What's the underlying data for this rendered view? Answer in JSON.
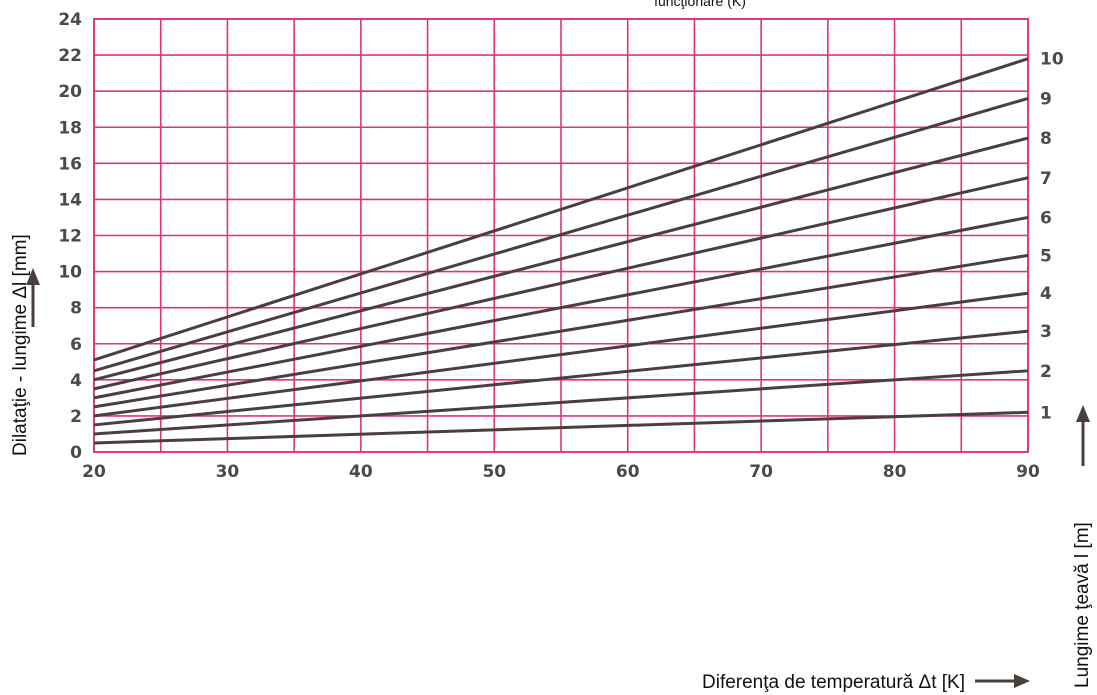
{
  "chart_data": {
    "type": "line",
    "title": "",
    "top_label_fragment": "funcţionare  (K)",
    "xlabel": "Diferenţa de temperatură Δt [K]",
    "ylabel": "Dilataţie - lungime Δl [mm]",
    "y2label": "Lungime ţeavă l [m]",
    "xlim": [
      20,
      90
    ],
    "ylim": [
      0,
      24
    ],
    "x_ticks": [
      "20",
      "30",
      "40",
      "50",
      "60",
      "70",
      "80",
      "90"
    ],
    "y_ticks": [
      "0",
      "2",
      "4",
      "6",
      "8",
      "10",
      "12",
      "14",
      "16",
      "18",
      "20",
      "22",
      "24"
    ],
    "grid": true,
    "x_grid_step": 5,
    "y_grid_step": 2,
    "colors": {
      "grid": "#e0327a",
      "line": "#4a3f3c",
      "tick": "#4a4a4a"
    },
    "x": [
      20,
      90
    ],
    "series": [
      {
        "name": "1",
        "values": [
          0.5,
          2.2
        ]
      },
      {
        "name": "2",
        "values": [
          1.0,
          4.5
        ]
      },
      {
        "name": "3",
        "values": [
          1.5,
          6.7
        ]
      },
      {
        "name": "4",
        "values": [
          2.0,
          8.8
        ]
      },
      {
        "name": "5",
        "values": [
          2.5,
          10.9
        ]
      },
      {
        "name": "6",
        "values": [
          3.0,
          13.0
        ]
      },
      {
        "name": "7",
        "values": [
          3.5,
          15.2
        ]
      },
      {
        "name": "8",
        "values": [
          4.0,
          17.4
        ]
      },
      {
        "name": "9",
        "values": [
          4.5,
          19.6
        ]
      },
      {
        "name": "10",
        "values": [
          5.1,
          21.8
        ]
      }
    ]
  }
}
